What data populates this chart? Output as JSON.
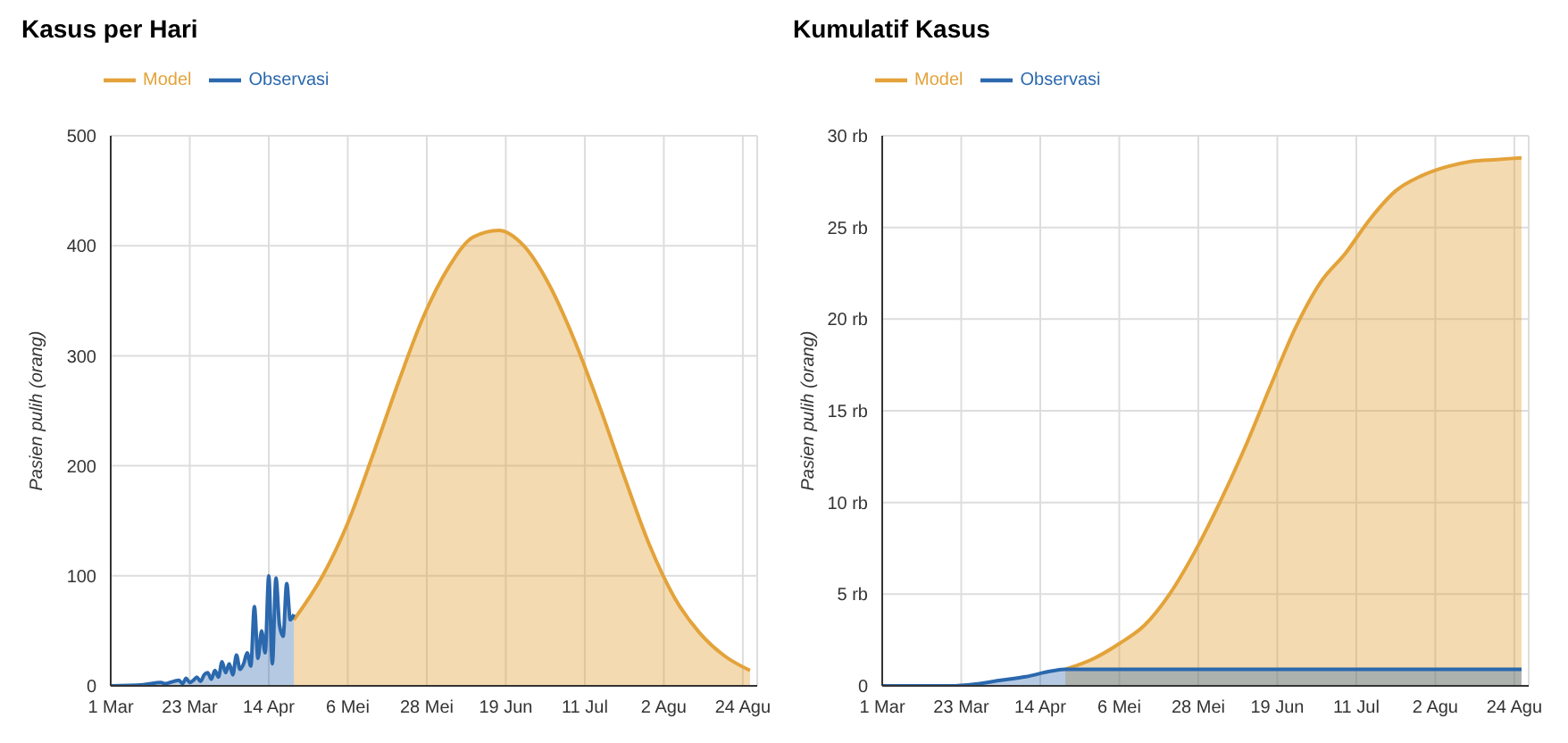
{
  "chart_data": [
    {
      "type": "area",
      "title": "Kasus per Hari",
      "ylabel": "Pasien pulih (orang)",
      "xlim": [
        "--03-01",
        "--08-28"
      ],
      "xticks": [
        {
          "value": "--03-01",
          "label": "1 Mar"
        },
        {
          "value": "--03-23",
          "label": "23 Mar"
        },
        {
          "value": "--04-14",
          "label": "14 Apr"
        },
        {
          "value": "--05-06",
          "label": "6 Mei"
        },
        {
          "value": "--05-28",
          "label": "28 Mei"
        },
        {
          "value": "--06-19",
          "label": "19 Jun"
        },
        {
          "value": "--07-11",
          "label": "11 Jul"
        },
        {
          "value": "--08-02",
          "label": "2 Agu"
        },
        {
          "value": "--08-24",
          "label": "24 Agu"
        }
      ],
      "ylim": [
        0,
        500
      ],
      "yticks": [
        0,
        100,
        200,
        300,
        400,
        500
      ],
      "grid": true,
      "legend": "top left",
      "series": [
        {
          "name": "Model",
          "color": "#e3a33a",
          "x": [
            "--04-21",
            "--04-29",
            "--05-06",
            "--05-13",
            "--05-20",
            "--05-27",
            "--06-03",
            "--06-10",
            "--06-17",
            "--06-24",
            "--07-01",
            "--07-08",
            "--07-15",
            "--07-22",
            "--07-29",
            "--08-05",
            "--08-12",
            "--08-19",
            "--08-26"
          ],
          "values": [
            60,
            100,
            148,
            210,
            275,
            335,
            380,
            408,
            414,
            400,
            365,
            315,
            255,
            190,
            128,
            80,
            48,
            27,
            14
          ]
        },
        {
          "name": "Observasi",
          "color": "#2b68ad",
          "x": [
            "--03-01",
            "--03-10",
            "--03-15",
            "--03-16",
            "--03-20",
            "--03-21",
            "--03-22",
            "--03-23",
            "--03-24",
            "--03-25",
            "--03-26",
            "--03-27",
            "--03-28",
            "--03-29",
            "--03-30",
            "--03-31",
            "--04-01",
            "--04-02",
            "--04-03",
            "--04-04",
            "--04-05",
            "--04-06",
            "--04-07",
            "--04-08",
            "--04-09",
            "--04-10",
            "--04-11",
            "--04-12",
            "--04-13",
            "--04-14",
            "--04-15",
            "--04-16",
            "--04-17",
            "--04-18",
            "--04-19",
            "--04-20",
            "--04-21"
          ],
          "values": [
            0,
            1,
            3,
            2,
            5,
            2,
            7,
            3,
            5,
            8,
            4,
            10,
            12,
            6,
            14,
            8,
            22,
            12,
            20,
            10,
            28,
            15,
            20,
            30,
            18,
            72,
            25,
            50,
            30,
            100,
            20,
            98,
            55,
            45,
            93,
            60,
            65
          ]
        }
      ]
    },
    {
      "type": "area",
      "title": "Kumulatif Kasus",
      "ylabel": "Pasien pulih (orang)",
      "xlim": [
        "--03-01",
        "--08-28"
      ],
      "xticks": [
        {
          "value": "--03-01",
          "label": "1 Mar"
        },
        {
          "value": "--03-23",
          "label": "23 Mar"
        },
        {
          "value": "--04-14",
          "label": "14 Apr"
        },
        {
          "value": "--05-06",
          "label": "6 Mei"
        },
        {
          "value": "--05-28",
          "label": "28 Mei"
        },
        {
          "value": "--06-19",
          "label": "19 Jun"
        },
        {
          "value": "--07-11",
          "label": "11 Jul"
        },
        {
          "value": "--08-02",
          "label": "2 Agu"
        },
        {
          "value": "--08-24",
          "label": "24 Agu"
        }
      ],
      "ylim": [
        0,
        30
      ],
      "yticks": [
        0,
        {
          "value": 5,
          "label": "5 rb"
        },
        {
          "value": 10,
          "label": "10 rb"
        },
        {
          "value": 15,
          "label": "15 rb"
        },
        {
          "value": 20,
          "label": "20 rb"
        },
        {
          "value": 25,
          "label": "25 rb"
        },
        {
          "value": 30,
          "label": "30 rb"
        }
      ],
      "grid": true,
      "legend": "top left",
      "series": [
        {
          "name": "Model",
          "color": "#e3a33a",
          "x": [
            "--04-21",
            "--04-29",
            "--05-06",
            "--05-13",
            "--05-20",
            "--05-27",
            "--06-03",
            "--06-10",
            "--06-17",
            "--06-24",
            "--07-01",
            "--07-08",
            "--07-15",
            "--07-22",
            "--07-29",
            "--08-05",
            "--08-12",
            "--08-19",
            "--08-26"
          ],
          "values": [
            0.9,
            1.5,
            2.3,
            3.3,
            5,
            7.3,
            10,
            13,
            16.3,
            19.5,
            22,
            23.6,
            25.5,
            27,
            27.8,
            28.3,
            28.6,
            28.7,
            28.8
          ]
        },
        {
          "name": "Observasi",
          "color": "#2b68ad",
          "x": [
            "--03-01",
            "--03-20",
            "--03-27",
            "--04-03",
            "--04-10",
            "--04-17",
            "--04-21",
            "--08-26"
          ],
          "values": [
            0,
            0,
            0.1,
            0.3,
            0.5,
            0.8,
            0.9,
            0.9
          ]
        }
      ]
    }
  ]
}
